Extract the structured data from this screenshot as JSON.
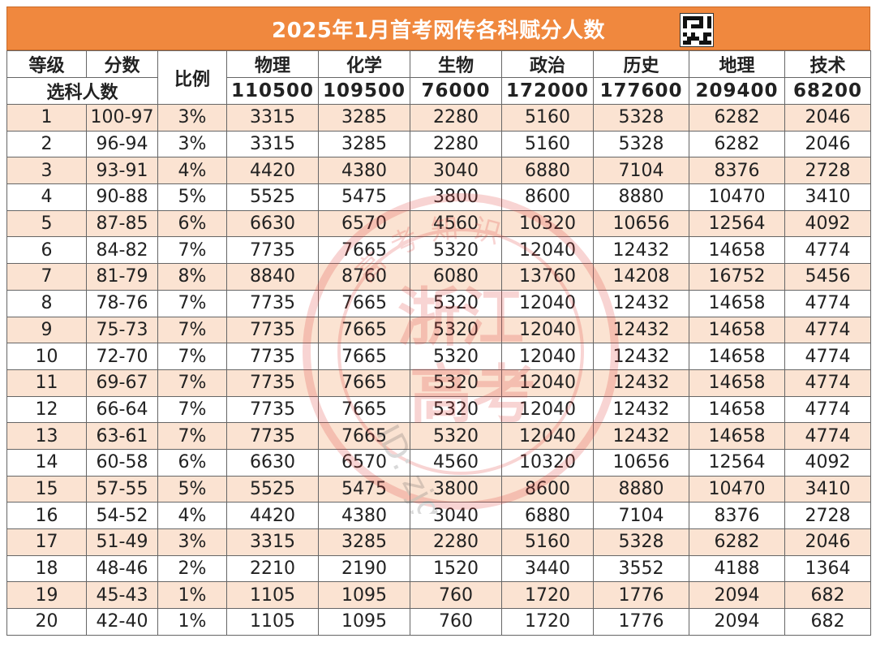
{
  "title": "2025年1月首考网传各科赋分人数",
  "header": {
    "grade": "等级",
    "score": "分数",
    "ratio": "比例",
    "selected_label": "选科人数",
    "subjects": [
      {
        "name": "物理",
        "total": "110500"
      },
      {
        "name": "化学",
        "total": "109500"
      },
      {
        "name": "生物",
        "total": "76000"
      },
      {
        "name": "政治",
        "total": "172000"
      },
      {
        "name": "历史",
        "total": "177600"
      },
      {
        "name": "地理",
        "total": "209400"
      },
      {
        "name": "技术",
        "total": "68200"
      }
    ]
  },
  "rows": [
    {
      "grade": "1",
      "score": "100-97",
      "ratio": "3%",
      "counts": [
        "3315",
        "3285",
        "2280",
        "5160",
        "5328",
        "6282",
        "2046"
      ]
    },
    {
      "grade": "2",
      "score": "96-94",
      "ratio": "3%",
      "counts": [
        "3315",
        "3285",
        "2280",
        "5160",
        "5328",
        "6282",
        "2046"
      ]
    },
    {
      "grade": "3",
      "score": "93-91",
      "ratio": "4%",
      "counts": [
        "4420",
        "4380",
        "3040",
        "6880",
        "7104",
        "8376",
        "2728"
      ]
    },
    {
      "grade": "4",
      "score": "90-88",
      "ratio": "5%",
      "counts": [
        "5525",
        "5475",
        "3800",
        "8600",
        "8880",
        "10470",
        "3410"
      ]
    },
    {
      "grade": "5",
      "score": "87-85",
      "ratio": "6%",
      "counts": [
        "6630",
        "6570",
        "4560",
        "10320",
        "10656",
        "12564",
        "4092"
      ]
    },
    {
      "grade": "6",
      "score": "84-82",
      "ratio": "7%",
      "counts": [
        "7735",
        "7665",
        "5320",
        "12040",
        "12432",
        "14658",
        "4774"
      ]
    },
    {
      "grade": "7",
      "score": "81-79",
      "ratio": "8%",
      "counts": [
        "8840",
        "8760",
        "6080",
        "13760",
        "14208",
        "16752",
        "5456"
      ]
    },
    {
      "grade": "8",
      "score": "78-76",
      "ratio": "7%",
      "counts": [
        "7735",
        "7665",
        "5320",
        "12040",
        "12432",
        "14658",
        "4774"
      ]
    },
    {
      "grade": "9",
      "score": "75-73",
      "ratio": "7%",
      "counts": [
        "7735",
        "7665",
        "5320",
        "12040",
        "12432",
        "14658",
        "4774"
      ]
    },
    {
      "grade": "10",
      "score": "72-70",
      "ratio": "7%",
      "counts": [
        "7735",
        "7665",
        "5320",
        "12040",
        "12432",
        "14658",
        "4774"
      ]
    },
    {
      "grade": "11",
      "score": "69-67",
      "ratio": "7%",
      "counts": [
        "7735",
        "7665",
        "5320",
        "12040",
        "12432",
        "14658",
        "4774"
      ]
    },
    {
      "grade": "12",
      "score": "66-64",
      "ratio": "7%",
      "counts": [
        "7735",
        "7665",
        "5320",
        "12040",
        "12432",
        "14658",
        "4774"
      ]
    },
    {
      "grade": "13",
      "score": "63-61",
      "ratio": "7%",
      "counts": [
        "7735",
        "7665",
        "5320",
        "12040",
        "12432",
        "14658",
        "4774"
      ]
    },
    {
      "grade": "14",
      "score": "60-58",
      "ratio": "6%",
      "counts": [
        "6630",
        "6570",
        "4560",
        "10320",
        "10656",
        "12564",
        "4092"
      ]
    },
    {
      "grade": "15",
      "score": "57-55",
      "ratio": "5%",
      "counts": [
        "5525",
        "5475",
        "3800",
        "8600",
        "8880",
        "10470",
        "3410"
      ]
    },
    {
      "grade": "16",
      "score": "54-52",
      "ratio": "4%",
      "counts": [
        "4420",
        "4380",
        "3040",
        "6880",
        "7104",
        "8376",
        "2728"
      ]
    },
    {
      "grade": "17",
      "score": "51-49",
      "ratio": "3%",
      "counts": [
        "3315",
        "3285",
        "2280",
        "5160",
        "5328",
        "6282",
        "2046"
      ]
    },
    {
      "grade": "18",
      "score": "48-46",
      "ratio": "2%",
      "counts": [
        "2210",
        "2190",
        "1520",
        "3440",
        "3552",
        "4188",
        "1364"
      ]
    },
    {
      "grade": "19",
      "score": "45-43",
      "ratio": "1%",
      "counts": [
        "1105",
        "1095",
        "760",
        "1720",
        "1776",
        "2094",
        "682"
      ]
    },
    {
      "grade": "20",
      "score": "42-40",
      "ratio": "1%",
      "counts": [
        "1105",
        "1095",
        "760",
        "1720",
        "1776",
        "2094",
        "682"
      ]
    }
  ],
  "watermark": {
    "center_text": "浙江高考",
    "ring_text": "高考知识",
    "id_text": "ID: zjgkzs",
    "color": "#e0403a"
  },
  "colors": {
    "title_bg": "#f0883e",
    "stripe": "#fbe3d2",
    "border": "#666666"
  },
  "qr_icon": "qr-code-icon"
}
